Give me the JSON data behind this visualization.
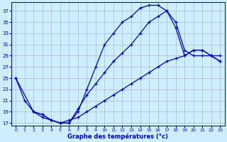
{
  "xlabel": "Graphe des températures (°c)",
  "background_color": "#cceeff",
  "grid_color": "#aabbcc",
  "line_color": "#0000cc",
  "xlim": [
    -0.5,
    23.5
  ],
  "ylim": [
    16.5,
    38.5
  ],
  "yticks": [
    17,
    19,
    21,
    23,
    25,
    27,
    29,
    31,
    33,
    35,
    37
  ],
  "xticks": [
    0,
    1,
    2,
    3,
    4,
    5,
    6,
    7,
    8,
    9,
    10,
    11,
    12,
    13,
    14,
    15,
    16,
    17,
    18,
    19,
    20,
    21,
    22,
    23
  ],
  "line1_x": [
    0,
    1,
    2,
    3,
    4,
    5,
    6,
    7,
    8,
    9,
    10,
    11,
    12,
    13,
    14,
    15,
    16,
    17,
    18,
    19,
    20,
    21,
    22,
    23
  ],
  "line1_y": [
    25,
    21,
    19,
    18,
    17.5,
    17,
    17,
    19,
    23,
    27,
    31,
    33,
    35,
    36,
    37.5,
    38,
    38,
    37,
    35,
    30,
    29,
    29,
    29,
    28
  ],
  "line2_x": [
    0,
    2,
    3,
    4,
    5,
    6,
    7,
    8,
    9,
    10,
    11,
    12,
    13,
    14,
    15,
    16,
    17,
    18,
    19,
    20,
    21,
    22,
    23
  ],
  "line2_y": [
    25,
    19,
    18.5,
    17.5,
    17,
    17,
    19.5,
    22,
    24,
    26,
    28,
    29.5,
    31,
    33,
    35,
    36,
    37,
    34,
    29,
    30,
    30,
    29,
    29
  ],
  "line3_x": [
    2,
    3,
    4,
    5,
    6,
    7,
    8,
    9,
    10,
    11,
    12,
    13,
    14,
    15,
    16,
    17,
    18,
    19,
    20,
    21,
    22,
    23
  ],
  "line3_y": [
    19,
    18.5,
    17.5,
    17,
    17.5,
    18,
    19,
    20,
    21,
    22,
    23,
    24,
    25,
    26,
    27,
    28,
    28.5,
    29,
    30,
    30,
    29,
    28
  ]
}
